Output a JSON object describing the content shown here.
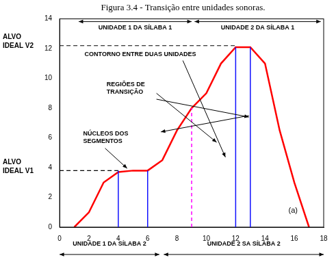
{
  "chart_data": {
    "type": "line",
    "title": "Figura 3.4 - Transição entre unidades sonoras.",
    "x": [
      1,
      2,
      3,
      4,
      5,
      6,
      7,
      8,
      9,
      10,
      11,
      12,
      13,
      14,
      15,
      16,
      17
    ],
    "series": [
      {
        "color": "#ff0000",
        "values": [
          0,
          1,
          3,
          3.7,
          3.8,
          3.8,
          4.5,
          6.5,
          8,
          9,
          11,
          12.1,
          12.1,
          11,
          6.5,
          3,
          0
        ]
      }
    ],
    "xlim": [
      0,
      18
    ],
    "xticks": [
      0,
      2,
      4,
      6,
      8,
      10,
      12,
      14,
      16,
      18
    ],
    "ylim": [
      0,
      14
    ],
    "yticks": [
      0,
      2,
      4,
      6,
      8,
      10,
      12,
      14
    ],
    "grid": false,
    "targets": [
      {
        "label": "ALVO\nIDEAL V2",
        "value": 12.2,
        "x_end": 12,
        "color": "#000000"
      },
      {
        "label": "ALVO\nIDEAL V1",
        "value": 3.8,
        "x_end": 4,
        "color": "#000000"
      }
    ],
    "nucleus_lines": {
      "color": "#1010ff",
      "lines": [
        {
          "x": 4,
          "y": 3.8
        },
        {
          "x": 6,
          "y": 3.8
        },
        {
          "x": 12,
          "y": 12.1
        },
        {
          "x": 13,
          "y": 12.1
        }
      ]
    },
    "boundary": {
      "x": 9,
      "y": 8,
      "color": "#ff00ff"
    },
    "units_top": [
      {
        "label": "UNIDADE 1 DA SÍLABA 1",
        "from": 1.3,
        "to": 9
      },
      {
        "label": "UNIDADE 2 DA SÍLABA 1",
        "from": 9.2,
        "to": 17.8
      }
    ],
    "units_bottom": [
      {
        "label": "UNIDADE 1 DA SÍLABA 2",
        "from": 0,
        "to": 6.8
      },
      {
        "label": "UNIDADE 2 SA SÍLABA 2",
        "from": 7.1,
        "to": 18
      }
    ],
    "annotations": [
      "CONTORNO ENTRE DUAS UNIDADES",
      "REGIÕES DE\nTRANSIÇÃO",
      "NÚCLEOS DOS\nSEGMENTOS",
      "(a)"
    ]
  }
}
